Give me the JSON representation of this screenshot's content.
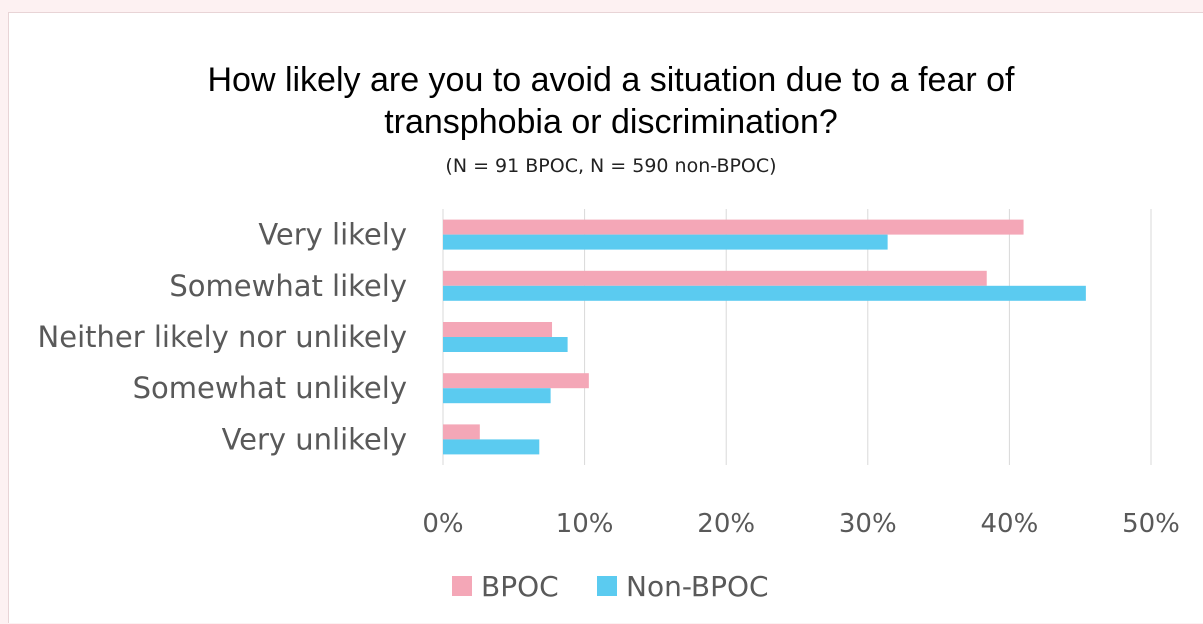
{
  "chart_data": {
    "type": "bar",
    "orientation": "horizontal",
    "title_line1": "How likely are you to avoid a situation due to a fear of",
    "title_line2": "transphobia or discrimination?",
    "subtitle": "(N = 91 BPOC, N = 590 non-BPOC)",
    "categories": [
      "Very likely",
      "Somewhat likely",
      "Neither likely nor unlikely",
      "Somewhat unlikely",
      "Very unlikely"
    ],
    "series": [
      {
        "name": "BPOC",
        "color": "#f4a7b7",
        "values": [
          41,
          38.4,
          7.7,
          10.3,
          2.6
        ]
      },
      {
        "name": "Non-BPOC",
        "color": "#5bcbf0",
        "values": [
          31.4,
          45.4,
          8.8,
          7.6,
          6.8
        ]
      }
    ],
    "xlim": [
      0,
      50
    ],
    "x_ticks": [
      "0%",
      "10%",
      "20%",
      "30%",
      "40%",
      "50%"
    ],
    "grid": "vertical",
    "legend_position": "bottom",
    "colors": {
      "gridline": "#d9d9d9",
      "label": "#595959"
    }
  }
}
